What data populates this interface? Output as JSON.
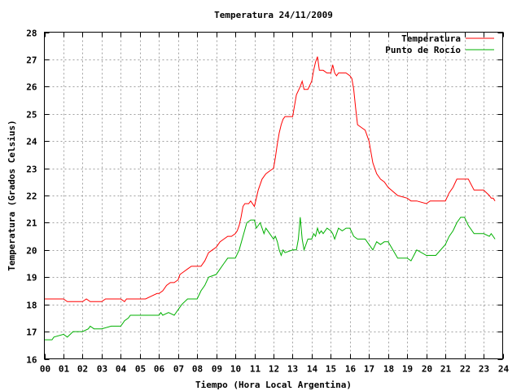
{
  "chart_data": {
    "type": "line",
    "title": "Temperatura 24/11/2009",
    "xlabel": "Tiempo (Hora Local Argentina)",
    "ylabel": "Temperatura (Grados Celsius)",
    "xlim": [
      0,
      24
    ],
    "ylim": [
      16,
      28
    ],
    "grid": true,
    "legend": "top-right",
    "x_ticks": [
      "00",
      "01",
      "02",
      "03",
      "04",
      "05",
      "06",
      "07",
      "08",
      "09",
      "10",
      "11",
      "12",
      "13",
      "14",
      "15",
      "16",
      "17",
      "18",
      "19",
      "20",
      "21",
      "22",
      "23",
      "24"
    ],
    "y_ticks": [
      "16",
      "17",
      "18",
      "19",
      "20",
      "21",
      "22",
      "23",
      "24",
      "25",
      "26",
      "27",
      "28"
    ],
    "series": [
      {
        "name": "Temperatura",
        "color": "#ff0000",
        "x": [
          0.0,
          0.5,
          1.0,
          1.2,
          1.5,
          2.0,
          2.2,
          2.4,
          2.6,
          2.8,
          3.0,
          3.2,
          3.5,
          4.0,
          4.2,
          4.3,
          4.5,
          5.0,
          5.3,
          5.6,
          5.9,
          6.0,
          6.2,
          6.4,
          6.6,
          6.8,
          7.0,
          7.1,
          7.3,
          7.5,
          7.7,
          8.0,
          8.2,
          8.4,
          8.6,
          8.8,
          9.0,
          9.2,
          9.4,
          9.6,
          9.8,
          10.0,
          10.1,
          10.2,
          10.3,
          10.4,
          10.5,
          10.6,
          10.7,
          10.8,
          11.0,
          11.1,
          11.2,
          11.4,
          11.6,
          11.8,
          12.0,
          12.1,
          12.2,
          12.3,
          12.4,
          12.5,
          12.6,
          12.8,
          13.0,
          13.1,
          13.2,
          13.4,
          13.5,
          13.6,
          13.8,
          14.0,
          14.1,
          14.2,
          14.3,
          14.4,
          14.5,
          14.6,
          14.8,
          15.0,
          15.1,
          15.2,
          15.3,
          15.4,
          15.6,
          15.8,
          16.0,
          16.1,
          16.2,
          16.3,
          16.4,
          16.6,
          16.8,
          17.0,
          17.2,
          17.4,
          17.6,
          17.8,
          18.0,
          18.5,
          19.0,
          19.2,
          19.5,
          20.0,
          20.2,
          20.5,
          21.0,
          21.2,
          21.4,
          21.6,
          21.8,
          22.0,
          22.2,
          22.5,
          22.8,
          23.0,
          23.3,
          23.4,
          23.5,
          23.6
        ],
        "values": [
          18.2,
          18.2,
          18.2,
          18.1,
          18.1,
          18.1,
          18.2,
          18.1,
          18.1,
          18.1,
          18.1,
          18.2,
          18.2,
          18.2,
          18.1,
          18.2,
          18.2,
          18.2,
          18.2,
          18.3,
          18.4,
          18.4,
          18.5,
          18.7,
          18.8,
          18.8,
          18.9,
          19.1,
          19.2,
          19.3,
          19.4,
          19.4,
          19.4,
          19.6,
          19.9,
          20.0,
          20.1,
          20.3,
          20.4,
          20.5,
          20.5,
          20.6,
          20.7,
          20.9,
          21.2,
          21.6,
          21.7,
          21.7,
          21.7,
          21.8,
          21.6,
          21.9,
          22.2,
          22.6,
          22.8,
          22.9,
          23.0,
          23.4,
          23.9,
          24.3,
          24.6,
          24.8,
          24.9,
          24.9,
          24.9,
          25.3,
          25.7,
          26.0,
          26.2,
          25.9,
          25.9,
          26.2,
          26.6,
          26.9,
          27.1,
          26.6,
          26.6,
          26.6,
          26.5,
          26.5,
          26.8,
          26.5,
          26.4,
          26.5,
          26.5,
          26.5,
          26.4,
          26.3,
          25.9,
          25.2,
          24.6,
          24.5,
          24.4,
          24.0,
          23.2,
          22.8,
          22.6,
          22.5,
          22.3,
          22.0,
          21.9,
          21.8,
          21.8,
          21.7,
          21.8,
          21.8,
          21.8,
          22.1,
          22.3,
          22.6,
          22.6,
          22.6,
          22.6,
          22.2,
          22.2,
          22.2,
          22.0,
          21.9,
          21.9,
          21.8
        ],
        "legend_label": "Temperatura"
      },
      {
        "name": "Punto de Rocío",
        "color": "#00b000",
        "x": [
          0.0,
          0.4,
          0.5,
          1.0,
          1.2,
          1.5,
          2.0,
          2.3,
          2.4,
          2.6,
          3.0,
          3.5,
          4.0,
          4.1,
          4.2,
          4.4,
          4.5,
          5.0,
          5.5,
          6.0,
          6.1,
          6.2,
          6.5,
          6.8,
          7.0,
          7.2,
          7.5,
          7.7,
          8.0,
          8.2,
          8.4,
          8.6,
          9.0,
          9.2,
          9.4,
          9.6,
          9.8,
          10.0,
          10.2,
          10.4,
          10.6,
          10.8,
          11.0,
          11.1,
          11.3,
          11.5,
          11.6,
          11.8,
          12.0,
          12.1,
          12.2,
          12.3,
          12.4,
          12.5,
          12.6,
          13.0,
          13.2,
          13.3,
          13.4,
          13.5,
          13.6,
          13.8,
          14.0,
          14.1,
          14.2,
          14.3,
          14.4,
          14.5,
          14.6,
          14.8,
          15.0,
          15.1,
          15.2,
          15.4,
          15.6,
          15.8,
          16.0,
          16.2,
          16.4,
          16.6,
          16.8,
          17.0,
          17.2,
          17.4,
          17.6,
          17.8,
          18.0,
          18.5,
          19.0,
          19.2,
          19.5,
          20.0,
          20.5,
          21.0,
          21.2,
          21.4,
          21.6,
          21.8,
          22.0,
          22.2,
          22.5,
          23.0,
          23.3,
          23.4,
          23.5,
          23.6
        ],
        "values": [
          16.7,
          16.7,
          16.8,
          16.9,
          16.8,
          17.0,
          17.0,
          17.1,
          17.2,
          17.1,
          17.1,
          17.2,
          17.2,
          17.3,
          17.4,
          17.5,
          17.6,
          17.6,
          17.6,
          17.6,
          17.7,
          17.6,
          17.7,
          17.6,
          17.8,
          18.0,
          18.2,
          18.2,
          18.2,
          18.5,
          18.7,
          19.0,
          19.1,
          19.3,
          19.5,
          19.7,
          19.7,
          19.7,
          20.0,
          20.5,
          21.0,
          21.1,
          21.1,
          20.8,
          21.0,
          20.6,
          20.8,
          20.6,
          20.4,
          20.5,
          20.3,
          20.0,
          19.8,
          20.0,
          19.9,
          20.0,
          20.0,
          20.4,
          21.2,
          20.4,
          20.0,
          20.4,
          20.4,
          20.6,
          20.5,
          20.8,
          20.6,
          20.7,
          20.6,
          20.8,
          20.7,
          20.6,
          20.4,
          20.8,
          20.7,
          20.8,
          20.8,
          20.5,
          20.4,
          20.4,
          20.4,
          20.2,
          20.0,
          20.3,
          20.2,
          20.3,
          20.3,
          19.7,
          19.7,
          19.6,
          20.0,
          19.8,
          19.8,
          20.2,
          20.5,
          20.7,
          21.0,
          21.2,
          21.2,
          20.9,
          20.6,
          20.6,
          20.5,
          20.6,
          20.5,
          20.4
        ],
        "legend_label": "Punto de Rocío"
      }
    ]
  }
}
